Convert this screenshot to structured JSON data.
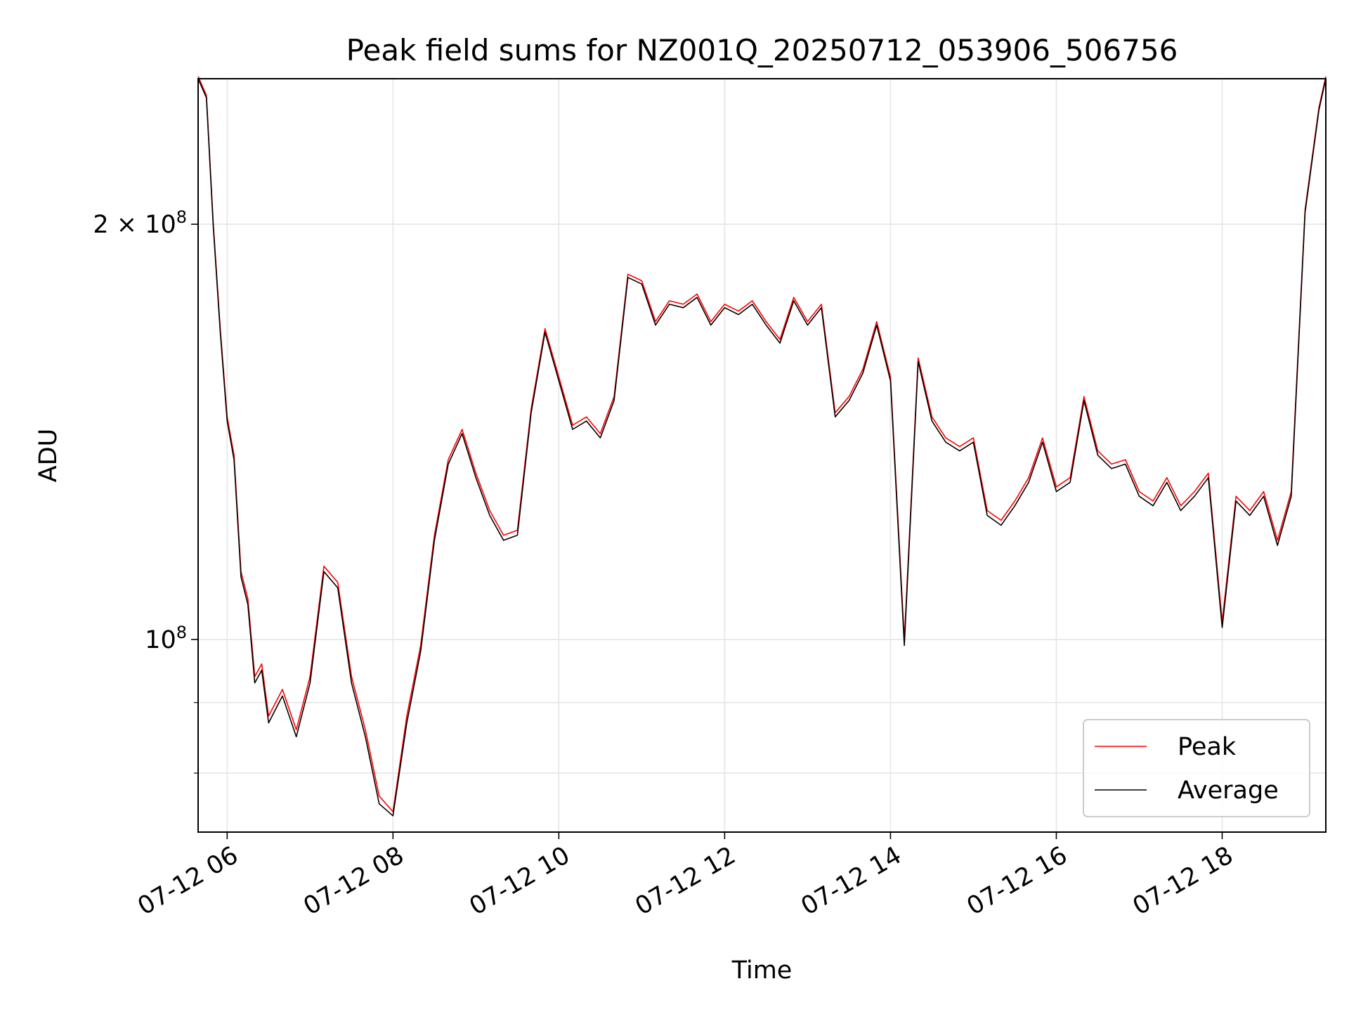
{
  "chart_data": {
    "type": "line",
    "title": "Peak field sums for NZ001Q_20250712_053906_506756",
    "xlabel": "Time",
    "ylabel": "ADU",
    "yscale": "log",
    "xlim": [
      "2025-07-12 05:39",
      "2025-07-12 19:15"
    ],
    "ylim": [
      72500000,
      255000000
    ],
    "grid": true,
    "legend_position": "lower-right",
    "x_ticks": [
      {
        "value": "2025-07-12 06:00",
        "label": "07-12 06"
      },
      {
        "value": "2025-07-12 08:00",
        "label": "07-12 08"
      },
      {
        "value": "2025-07-12 10:00",
        "label": "07-12 10"
      },
      {
        "value": "2025-07-12 12:00",
        "label": "07-12 12"
      },
      {
        "value": "2025-07-12 14:00",
        "label": "07-12 14"
      },
      {
        "value": "2025-07-12 16:00",
        "label": "07-12 16"
      },
      {
        "value": "2025-07-12 18:00",
        "label": "07-12 18"
      }
    ],
    "y_major_ticks": [
      {
        "value": 100000000,
        "base": "10",
        "exp": "8",
        "coef": ""
      },
      {
        "value": 200000000,
        "base": "10",
        "exp": "8",
        "coef": "2 × "
      }
    ],
    "y_minor_ticks": [
      80000000,
      90000000
    ],
    "series": [
      {
        "name": "Peak",
        "color": "#ff0000"
      },
      {
        "name": "Average",
        "color": "#000000"
      }
    ],
    "x": [
      "2025-07-12 05:39",
      "2025-07-12 05:45",
      "2025-07-12 05:50",
      "2025-07-12 05:55",
      "2025-07-12 06:00",
      "2025-07-12 06:05",
      "2025-07-12 06:10",
      "2025-07-12 06:15",
      "2025-07-12 06:20",
      "2025-07-12 06:25",
      "2025-07-12 06:30",
      "2025-07-12 06:40",
      "2025-07-12 06:50",
      "2025-07-12 07:00",
      "2025-07-12 07:10",
      "2025-07-12 07:20",
      "2025-07-12 07:30",
      "2025-07-12 07:40",
      "2025-07-12 07:50",
      "2025-07-12 08:00",
      "2025-07-12 08:10",
      "2025-07-12 08:20",
      "2025-07-12 08:30",
      "2025-07-12 08:40",
      "2025-07-12 08:50",
      "2025-07-12 09:00",
      "2025-07-12 09:10",
      "2025-07-12 09:20",
      "2025-07-12 09:30",
      "2025-07-12 09:40",
      "2025-07-12 09:50",
      "2025-07-12 10:00",
      "2025-07-12 10:10",
      "2025-07-12 10:20",
      "2025-07-12 10:30",
      "2025-07-12 10:40",
      "2025-07-12 10:50",
      "2025-07-12 11:00",
      "2025-07-12 11:10",
      "2025-07-12 11:20",
      "2025-07-12 11:30",
      "2025-07-12 11:40",
      "2025-07-12 11:50",
      "2025-07-12 12:00",
      "2025-07-12 12:10",
      "2025-07-12 12:20",
      "2025-07-12 12:30",
      "2025-07-12 12:40",
      "2025-07-12 12:50",
      "2025-07-12 13:00",
      "2025-07-12 13:10",
      "2025-07-12 13:20",
      "2025-07-12 13:30",
      "2025-07-12 13:40",
      "2025-07-12 13:50",
      "2025-07-12 14:00",
      "2025-07-12 14:10",
      "2025-07-12 14:20",
      "2025-07-12 14:30",
      "2025-07-12 14:40",
      "2025-07-12 14:50",
      "2025-07-12 15:00",
      "2025-07-12 15:10",
      "2025-07-12 15:20",
      "2025-07-12 15:30",
      "2025-07-12 15:40",
      "2025-07-12 15:50",
      "2025-07-12 16:00",
      "2025-07-12 16:10",
      "2025-07-12 16:20",
      "2025-07-12 16:30",
      "2025-07-12 16:40",
      "2025-07-12 16:50",
      "2025-07-12 17:00",
      "2025-07-12 17:10",
      "2025-07-12 17:20",
      "2025-07-12 17:30",
      "2025-07-12 17:40",
      "2025-07-12 17:50",
      "2025-07-12 18:00",
      "2025-07-12 18:10",
      "2025-07-12 18:20",
      "2025-07-12 18:30",
      "2025-07-12 18:40",
      "2025-07-12 18:50",
      "2025-07-12 19:00",
      "2025-07-12 19:10",
      "2025-07-12 19:15"
    ],
    "peak": [
      256000000,
      248000000,
      200000000,
      168000000,
      145000000,
      136000000,
      112000000,
      107000000,
      94000000,
      96000000,
      88000000,
      92000000,
      86000000,
      94000000,
      113000000,
      110000000,
      94000000,
      86000000,
      77000000,
      75000000,
      88000000,
      99000000,
      119000000,
      135000000,
      142000000,
      132000000,
      124000000,
      119000000,
      120000000,
      147000000,
      168000000,
      155000000,
      143000000,
      145000000,
      141000000,
      150000000,
      184000000,
      182000000,
      170000000,
      176000000,
      175000000,
      178000000,
      170000000,
      175000000,
      173000000,
      176000000,
      170000000,
      165000000,
      177000000,
      170000000,
      175000000,
      146000000,
      150000000,
      157000000,
      170000000,
      155000000,
      100000000,
      160000000,
      145000000,
      140000000,
      138000000,
      140000000,
      124000000,
      122000000,
      126000000,
      131000000,
      140000000,
      129000000,
      131000000,
      150000000,
      137000000,
      134000000,
      135000000,
      128000000,
      126000000,
      131000000,
      125000000,
      128000000,
      132000000,
      103000000,
      127000000,
      124000000,
      128000000,
      118000000,
      128000000,
      205000000,
      243000000,
      256000000
    ],
    "average": [
      255000000,
      247000000,
      199000000,
      167000000,
      144000000,
      135000000,
      111000000,
      106000000,
      93000000,
      95000000,
      87000000,
      91000000,
      85000000,
      93000000,
      112000000,
      109000000,
      93000000,
      85000000,
      76000000,
      74500000,
      87000000,
      98000000,
      118000000,
      134000000,
      141000000,
      131000000,
      123000000,
      118000000,
      119000000,
      146000000,
      167000000,
      154000000,
      142000000,
      144000000,
      140000000,
      149000000,
      183000000,
      181000000,
      169000000,
      175000000,
      174000000,
      177000000,
      169000000,
      174000000,
      172000000,
      175000000,
      169000000,
      164000000,
      176000000,
      169000000,
      174000000,
      145000000,
      149000000,
      156000000,
      169000000,
      154000000,
      99000000,
      159000000,
      144000000,
      139000000,
      137000000,
      139000000,
      123000000,
      121000000,
      125000000,
      130000000,
      139000000,
      128000000,
      130000000,
      149000000,
      136000000,
      133000000,
      134000000,
      127000000,
      125000000,
      130000000,
      124000000,
      127000000,
      131000000,
      102000000,
      126000000,
      123000000,
      127000000,
      117000000,
      127000000,
      204000000,
      242000000,
      255000000
    ]
  }
}
